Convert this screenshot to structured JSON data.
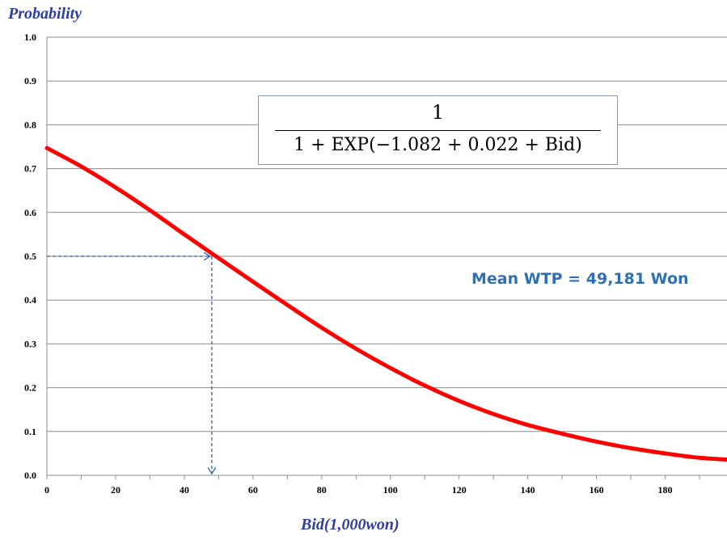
{
  "chart_data": {
    "type": "line",
    "ylabel": "Probability",
    "xlabel": "Bid(1,000won)",
    "xlim": [
      0,
      198
    ],
    "ylim": [
      0.0,
      1.0
    ],
    "x_ticks": [
      "0",
      "20",
      "40",
      "60",
      "80",
      "100",
      "120",
      "140",
      "160",
      "180"
    ],
    "y_ticks": [
      "0.0",
      "0.1",
      "0.2",
      "0.3",
      "0.4",
      "0.5",
      "0.6",
      "0.7",
      "0.8",
      "0.9",
      "1.0"
    ],
    "grid": "horizontal",
    "series": [
      {
        "color": "#ff0000",
        "x": [
          0,
          10,
          20,
          30,
          40,
          49.2,
          60,
          70,
          80,
          90,
          100,
          110,
          120,
          130,
          140,
          150,
          160,
          170,
          180,
          190,
          198
        ],
        "y": [
          0.747,
          0.705,
          0.657,
          0.605,
          0.55,
          0.5,
          0.442,
          0.389,
          0.337,
          0.289,
          0.245,
          0.205,
          0.17,
          0.14,
          0.115,
          0.095,
          0.077,
          0.062,
          0.05,
          0.04,
          0.036
        ]
      }
    ],
    "reference": {
      "x": 48,
      "y": 0.5,
      "color": "#4a72b8"
    },
    "annotation": "Mean WTP = 49,181 Won",
    "formula": {
      "numerator": "1",
      "denominator": "1 + EXP(−1.082 + 0.022 + Bid)"
    }
  }
}
